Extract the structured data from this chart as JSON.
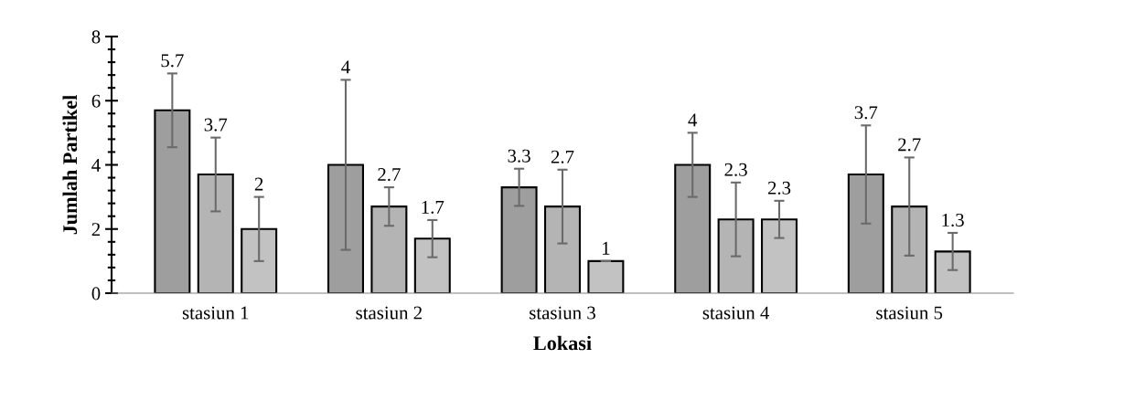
{
  "chart_data": {
    "type": "bar",
    "xlabel": "Lokasi",
    "ylabel": "Jumlah Partikel",
    "categories": [
      "stasiun 1",
      "stasiun 2",
      "stasiun 3",
      "stasiun 4",
      "stasiun 5"
    ],
    "series": [
      {
        "color": "#9e9e9e",
        "values": [
          5.7,
          4,
          3.3,
          4,
          3.7
        ],
        "errors": [
          1.15,
          2.65,
          0.58,
          1.0,
          1.53
        ],
        "value_labels": [
          "5.7",
          null,
          "3.3",
          "4",
          "3.7"
        ]
      },
      {
        "color": "#b4b4b4",
        "values": [
          3.7,
          2.7,
          2.7,
          2.3,
          2.7
        ],
        "errors": [
          1.15,
          0.6,
          1.15,
          1.15,
          1.53
        ],
        "value_labels": [
          "3.7",
          "2.7",
          "2.7",
          "2.3",
          "2.7"
        ]
      },
      {
        "color": "#c2c2c2",
        "values": [
          2,
          1.7,
          1,
          2.3,
          1.3
        ],
        "errors": [
          1.0,
          0.58,
          0,
          0.58,
          0.58
        ],
        "value_labels": [
          "2",
          "1.7",
          "1",
          "2.3",
          "1.3"
        ]
      }
    ],
    "annotations": [
      "4"
    ],
    "ylim": [
      0,
      8
    ],
    "yticks": [
      0,
      {
        "value": 0.4,
        "label": null
      },
      {
        "value": 0.8,
        "label": null
      },
      {
        "value": 1.2,
        "label": null
      },
      {
        "value": 1.6,
        "label": null
      },
      2,
      {
        "value": 2.4,
        "label": null
      },
      {
        "value": 2.8,
        "label": null
      },
      {
        "value": 3.2,
        "label": null
      },
      {
        "value": 3.6,
        "label": null
      },
      4,
      {
        "value": 4.4,
        "label": null
      },
      {
        "value": 4.8,
        "label": null
      },
      {
        "value": 5.2,
        "label": null
      },
      {
        "value": 5.6,
        "label": null
      },
      6,
      {
        "value": 6.4,
        "label": null
      },
      {
        "value": 6.8,
        "label": null
      },
      {
        "value": 7.2,
        "label": null
      },
      {
        "value": 7.6,
        "label": null
      },
      8
    ],
    "grid": false,
    "legend": false
  }
}
